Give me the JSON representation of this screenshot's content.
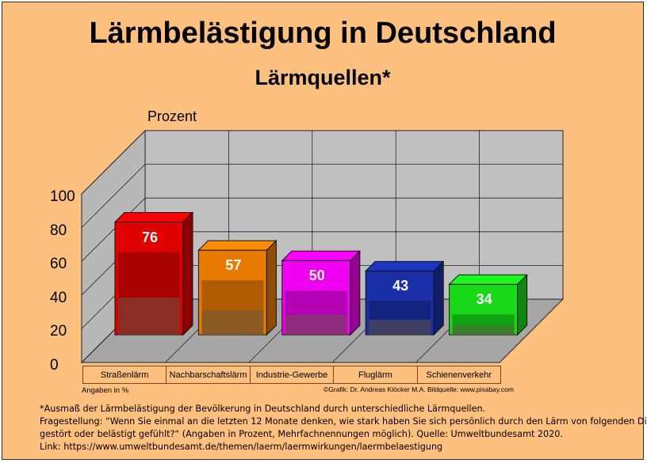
{
  "title": "Lärmbelästigung in Deutschland",
  "subtitle": "Lärmquellen*",
  "unit_label": "Prozent",
  "y_ticks": [
    "100",
    "80",
    "60",
    "40",
    "20",
    "0"
  ],
  "angaben": "Angaben in %",
  "credit": "©Grafik: Dr. Andreas Klöcker M.A.  Bildquelle: www.pixabay.com",
  "footnote": {
    "line1": "*Ausmaß der Lärmbelästigung der Bevölkerung in Deutschland durch unterschiedliche Lärmquellen.",
    "line2": "Fragestellung: “Wenn Sie einmal an die letzten 12 Monate denken, wie stark haben Sie sich persönlich durch den Lärm von folgenden Dingen",
    "line3": "gestört oder belästigt gefühlt?“ (Angaben in Prozent, Mehrfachnennungen möglich). Quelle: Umweltbundesamt 2020.",
    "line4": "Link: https://www.umweltbundesamt.de/themen/laerm/laermwirkungen/laermbelaestigung"
  },
  "chart_data": {
    "type": "bar",
    "categories": [
      "Straßenlärm",
      "Nachbarschaftslärm",
      "Industrie-Gewerbe",
      "Fluglärm",
      "Schienenverkehr"
    ],
    "values": [
      76,
      57,
      50,
      43,
      34
    ],
    "value_labels": [
      "76",
      "57",
      "50",
      "43",
      "34"
    ],
    "title": "Lärmbelästigung in Deutschland",
    "subtitle": "Lärmquellen*",
    "ylabel": "Prozent",
    "ylim": [
      0,
      100
    ],
    "grid": true,
    "colors": [
      "#e00000",
      "#e87a00",
      "#f000f0",
      "#1a2ea8",
      "#18d818"
    ],
    "photos": [
      "road-workers-photo",
      "old-town-street-photo",
      "industrial-plant-photo",
      "airplane-photo",
      "train-photo"
    ]
  }
}
